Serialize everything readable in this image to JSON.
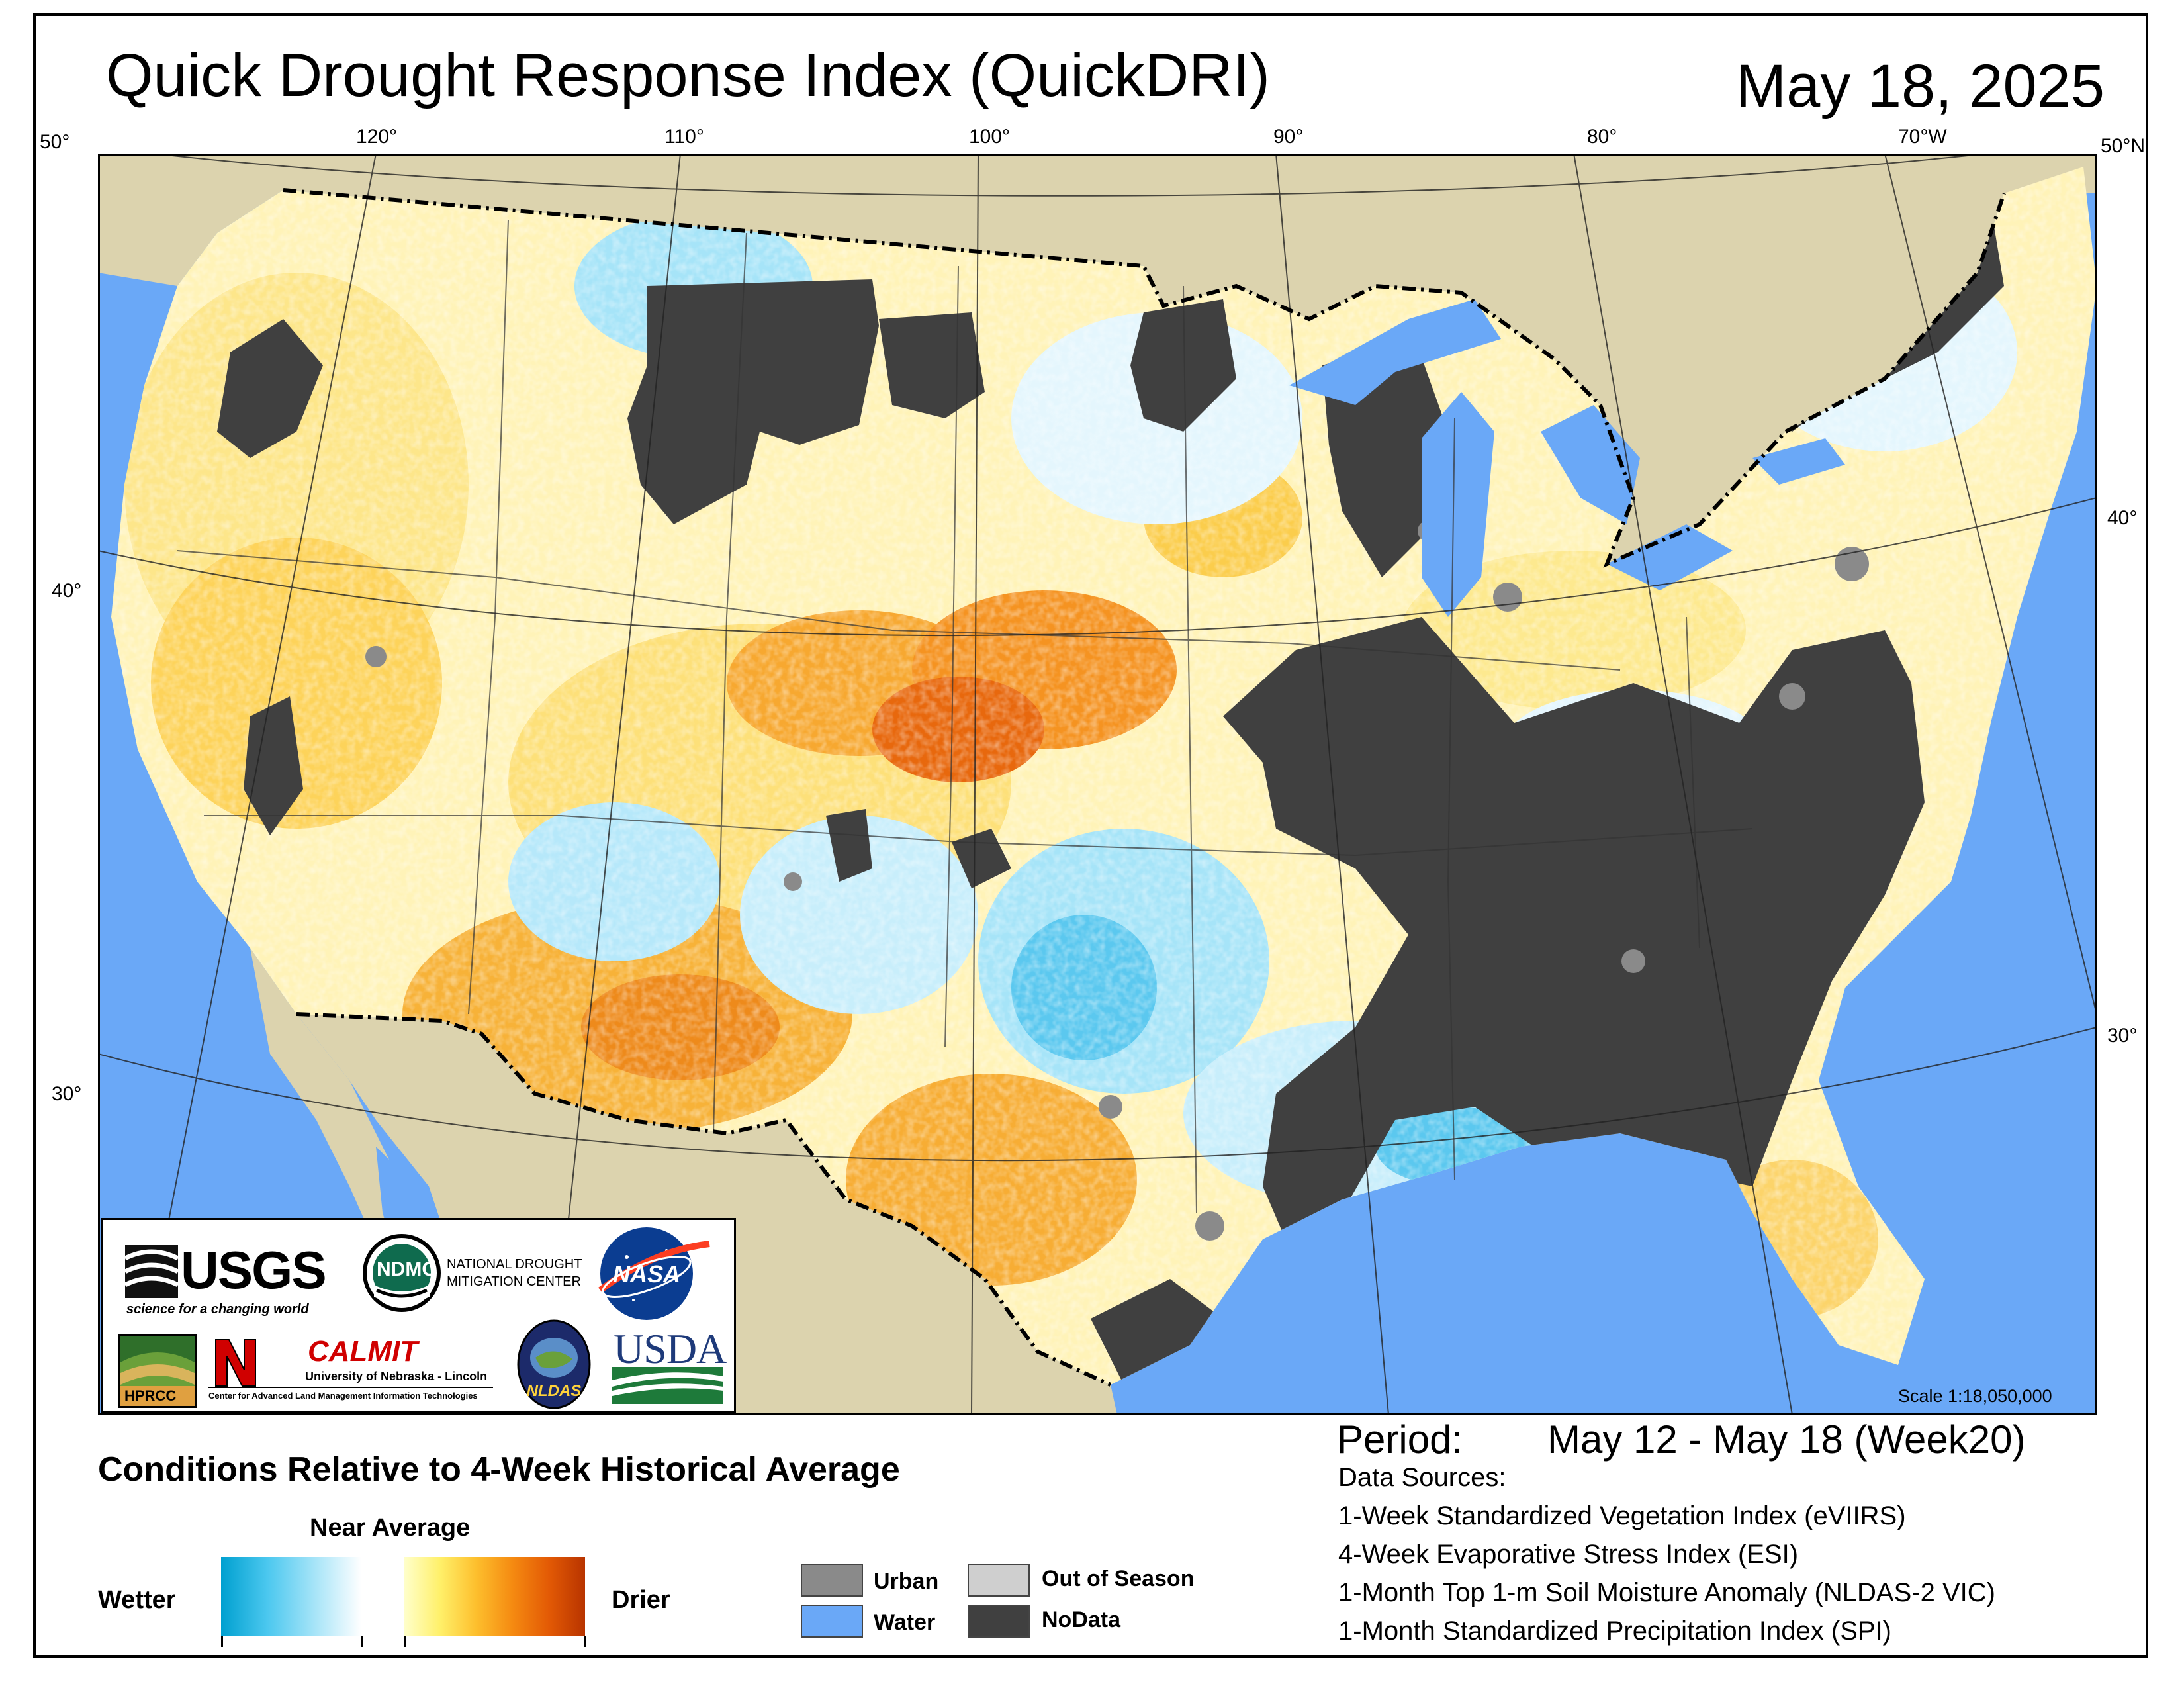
{
  "title": "Quick Drought Response Index (QuickDRI)",
  "date": "May 18, 2025",
  "graticule": {
    "top_labels": [
      "50°",
      "120°",
      "110°",
      "100°",
      "90°",
      "80°",
      "70°W",
      "50°N"
    ],
    "left_labels": [
      "40°",
      "30°"
    ],
    "right_labels": [
      "40°",
      "30°"
    ]
  },
  "scale_text": "Scale 1:18,050,000",
  "logos": {
    "usgs": "USGS",
    "usgs_tagline": "science for a changing world",
    "ndmc": "NDMC",
    "ndmc_full_line1": "NATIONAL DROUGHT",
    "ndmc_full_line2": "MITIGATION CENTER",
    "nasa": "NASA",
    "hprcc": "HPRCC",
    "calmit": "CALMIT",
    "calmit_line1": "University of Nebraska - Lincoln",
    "calmit_line2": "Center for Advanced Land Management Information Technologies",
    "nldas": "NLDAS",
    "usda": "USDA"
  },
  "period": {
    "label": "Period:",
    "value": "May 12 - May 18 (Week20)"
  },
  "data_sources": {
    "heading": "Data Sources:",
    "items": [
      "1-Week Standardized Vegetation Index (eVIIRS)",
      "4-Week Evaporative Stress Index (ESI)",
      "1-Month Top 1-m Soil Moisture Anomaly (NLDAS-2 VIC)",
      "1-Month Standardized Precipitation Index (SPI)"
    ]
  },
  "legend": {
    "title": "Conditions Relative to 4-Week Historical Average",
    "near_average": "Near Average",
    "wetter": "Wetter",
    "drier": "Drier",
    "categories": [
      {
        "label": "Urban",
        "color": "#8a8a8a"
      },
      {
        "label": "Water",
        "color": "#6aa8f7"
      },
      {
        "label": "Out of Season",
        "color": "#cfcfcf"
      },
      {
        "label": "NoData",
        "color": "#404040"
      }
    ]
  },
  "colors": {
    "water": "#6aa8f7",
    "land_outside": "#dcd3ae",
    "nodata": "#404040",
    "wet": "#4cc8ef",
    "dry": "#f58a11",
    "near": "#fff8c8"
  }
}
